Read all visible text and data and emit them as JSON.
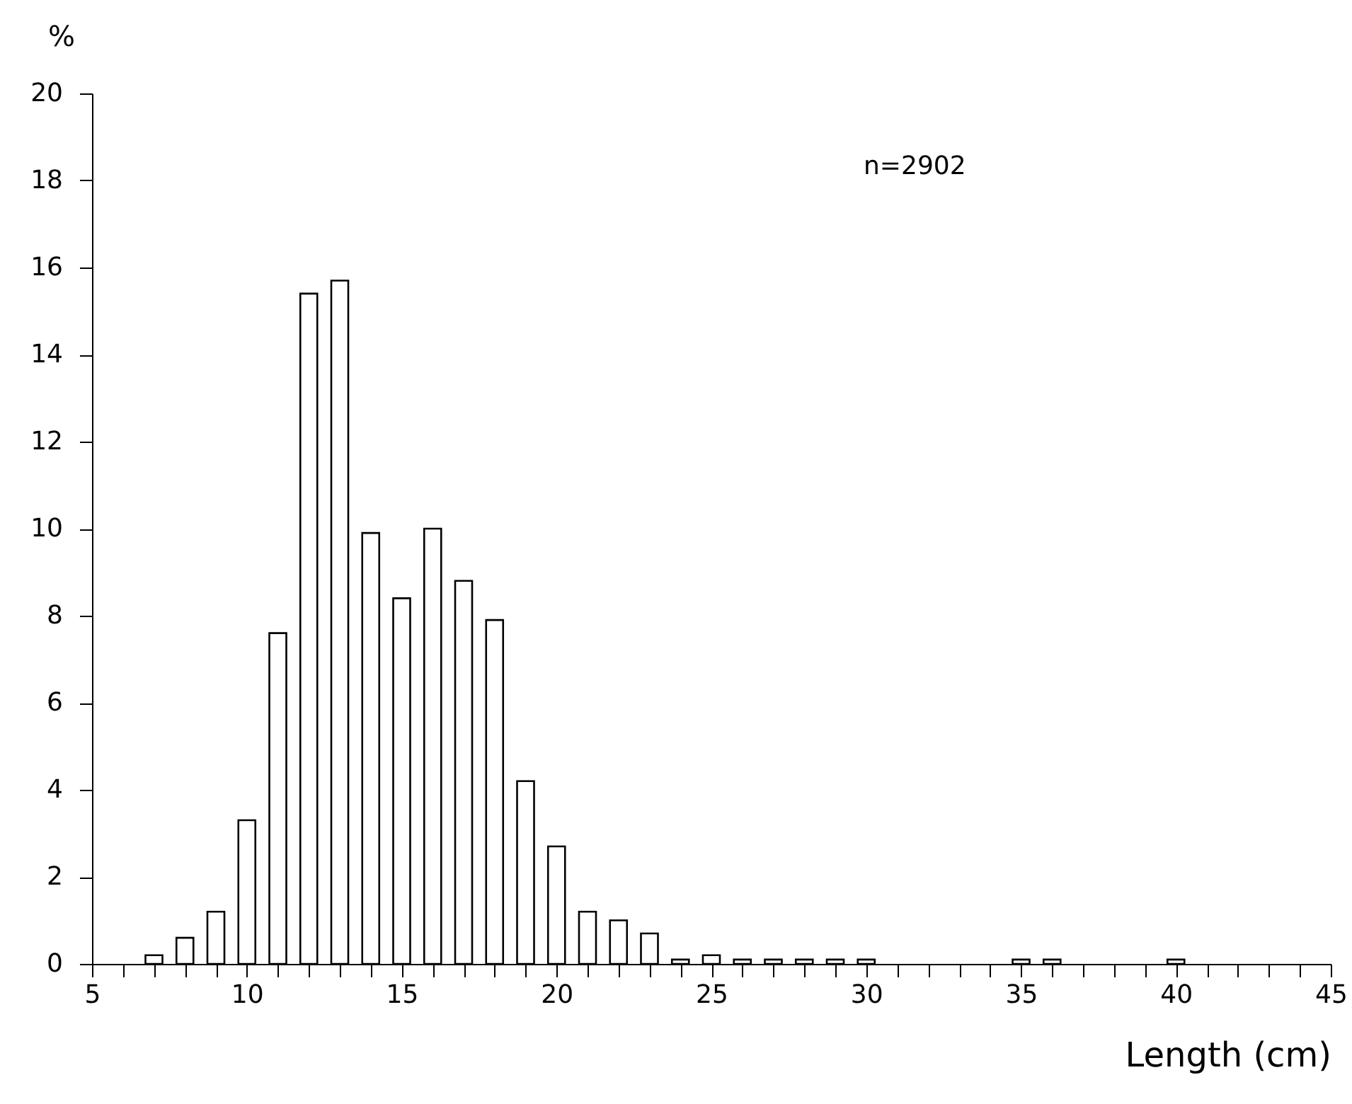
{
  "chart_data": {
    "type": "bar",
    "xlabel": "Length  (cm)",
    "ylabel": "%",
    "annotations": [
      "n=2902"
    ],
    "x": [
      7,
      8,
      9,
      10,
      11,
      12,
      13,
      14,
      15,
      16,
      17,
      18,
      19,
      20,
      21,
      22,
      23,
      24,
      25,
      26,
      27,
      28,
      29,
      30,
      31,
      32,
      33,
      34,
      35,
      36,
      37,
      38,
      39,
      40
    ],
    "values": [
      0.2,
      0.6,
      1.2,
      3.3,
      7.6,
      15.4,
      15.7,
      9.9,
      8.4,
      10.0,
      8.8,
      7.9,
      4.2,
      2.7,
      1.2,
      1.0,
      0.7,
      0.1,
      0.2,
      0.1,
      0.1,
      0.1,
      0.1,
      0.1,
      null,
      null,
      null,
      null,
      0.1,
      0.1,
      null,
      null,
      null,
      0.1
    ],
    "color": "#ffffff",
    "xlim": [
      5,
      45
    ],
    "xticks": [
      5,
      {
        "value": 6,
        "label": null
      },
      {
        "value": 7,
        "label": null
      },
      {
        "value": 8,
        "label": null
      },
      {
        "value": 9,
        "label": null
      },
      10,
      {
        "value": 11,
        "label": null
      },
      {
        "value": 12,
        "label": null
      },
      {
        "value": 13,
        "label": null
      },
      {
        "value": 14,
        "label": null
      },
      15,
      {
        "value": 16,
        "label": null
      },
      {
        "value": 17,
        "label": null
      },
      {
        "value": 18,
        "label": null
      },
      {
        "value": 19,
        "label": null
      },
      20,
      {
        "value": 21,
        "label": null
      },
      {
        "value": 22,
        "label": null
      },
      {
        "value": 23,
        "label": null
      },
      {
        "value": 24,
        "label": null
      },
      25,
      {
        "value": 26,
        "label": null
      },
      {
        "value": 27,
        "label": null
      },
      {
        "value": 28,
        "label": null
      },
      {
        "value": 29,
        "label": null
      },
      30,
      {
        "value": 31,
        "label": null
      },
      {
        "value": 32,
        "label": null
      },
      {
        "value": 33,
        "label": null
      },
      {
        "value": 34,
        "label": null
      },
      35,
      {
        "value": 36,
        "label": null
      },
      {
        "value": 37,
        "label": null
      },
      {
        "value": 38,
        "label": null
      },
      {
        "value": 39,
        "label": null
      },
      40,
      {
        "value": 41,
        "label": null
      },
      {
        "value": 42,
        "label": null
      },
      {
        "value": 43,
        "label": null
      },
      {
        "value": 44,
        "label": null
      },
      45
    ],
    "ylim": [
      0,
      20
    ],
    "yticks": [
      0,
      2,
      4,
      6,
      8,
      10,
      12,
      14,
      16,
      18,
      20
    ],
    "grid": false
  }
}
